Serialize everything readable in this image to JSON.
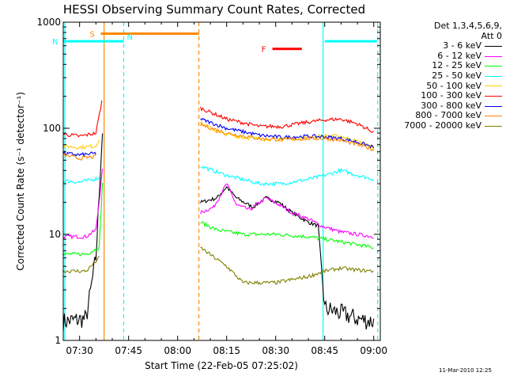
{
  "chart_data": {
    "type": "line",
    "title": "HESSI Observing Summary Count Rates, Corrected",
    "xlabel": "Start Time (22-Feb-05 07:25:02)",
    "ylabel": "Corrected Count Rate (s⁻¹ detector⁻¹)",
    "yscale": "log",
    "ylim": [
      1,
      1000
    ],
    "xlim_minutes": [
      445,
      542
    ],
    "x_ticks": [
      "07:30",
      "07:45",
      "08:00",
      "08:15",
      "08:30",
      "08:45",
      "09:00"
    ],
    "x_tick_minutes": [
      450,
      465,
      480,
      495,
      510,
      525,
      540
    ],
    "y_ticks": [
      "1",
      "10",
      "100",
      "1000"
    ],
    "y_tick_values": [
      1,
      10,
      100,
      1000
    ],
    "legend_header": [
      "Det 1,3,4,5,6,9,",
      "Att 0"
    ],
    "series": [
      {
        "name": "3 - 6 keV",
        "color": "#000000",
        "points": [
          [
            445,
            1.5
          ],
          [
            452,
            1.6
          ],
          [
            455,
            6.0
          ],
          [
            457,
            90
          ],
          [
            457.5,
            null
          ],
          [
            487,
            20
          ],
          [
            492,
            22
          ],
          [
            495,
            28
          ],
          [
            498,
            22
          ],
          [
            503,
            18
          ],
          [
            507,
            22
          ],
          [
            511,
            20
          ],
          [
            515,
            16
          ],
          [
            520,
            13
          ],
          [
            523,
            12
          ],
          [
            525,
            2.0
          ],
          [
            530,
            1.8
          ],
          [
            535,
            1.6
          ],
          [
            540,
            1.5
          ]
        ]
      },
      {
        "name": "6 - 12 keV",
        "color": "#ff00ff",
        "points": [
          [
            445,
            9.5
          ],
          [
            452,
            9.5
          ],
          [
            455,
            11
          ],
          [
            457,
            40
          ],
          [
            457.5,
            null
          ],
          [
            487,
            16
          ],
          [
            491,
            18
          ],
          [
            495,
            30
          ],
          [
            498,
            19
          ],
          [
            502,
            17
          ],
          [
            507,
            22
          ],
          [
            511,
            19
          ],
          [
            515,
            16
          ],
          [
            520,
            14
          ],
          [
            524,
            12
          ],
          [
            530,
            10.5
          ],
          [
            535,
            10
          ],
          [
            540,
            9.5
          ]
        ]
      },
      {
        "name": "12 - 25 keV",
        "color": "#00ff00",
        "points": [
          [
            445,
            6.5
          ],
          [
            452,
            6.5
          ],
          [
            456,
            7.5
          ],
          [
            457,
            30
          ],
          [
            457.5,
            null
          ],
          [
            487,
            13
          ],
          [
            492,
            11
          ],
          [
            500,
            10
          ],
          [
            510,
            10
          ],
          [
            520,
            9.5
          ],
          [
            530,
            8.5
          ],
          [
            540,
            7.5
          ]
        ]
      },
      {
        "name": "25 - 50 keV",
        "color": "#00ffff",
        "points": [
          [
            445,
            32
          ],
          [
            450,
            31
          ],
          [
            456,
            34
          ],
          [
            457.5,
            null
          ],
          [
            487,
            44
          ],
          [
            495,
            36
          ],
          [
            505,
            30
          ],
          [
            512,
            30
          ],
          [
            520,
            33
          ],
          [
            525,
            36
          ],
          [
            530,
            40
          ],
          [
            535,
            36
          ],
          [
            540,
            33
          ]
        ]
      },
      {
        "name": "50 - 100 keV",
        "color": "#ffcc00",
        "points": [
          [
            445,
            68
          ],
          [
            450,
            66
          ],
          [
            455,
            68
          ],
          [
            456,
            80
          ],
          [
            457.5,
            null
          ],
          [
            487,
            112
          ],
          [
            493,
            90
          ],
          [
            500,
            82
          ],
          [
            510,
            78
          ],
          [
            520,
            82
          ],
          [
            525,
            85
          ],
          [
            530,
            84
          ],
          [
            535,
            75
          ],
          [
            540,
            65
          ]
        ]
      },
      {
        "name": "100 - 300 keV",
        "color": "#ff0000",
        "points": [
          [
            445,
            88
          ],
          [
            450,
            84
          ],
          [
            455,
            90
          ],
          [
            456.8,
            180
          ],
          [
            457.5,
            null
          ],
          [
            487,
            155
          ],
          [
            495,
            122
          ],
          [
            505,
            104
          ],
          [
            512,
            104
          ],
          [
            518,
            112
          ],
          [
            525,
            120
          ],
          [
            530,
            122
          ],
          [
            535,
            110
          ],
          [
            540,
            92
          ]
        ]
      },
      {
        "name": "300 - 800 keV",
        "color": "#0000ff",
        "points": [
          [
            445,
            58
          ],
          [
            450,
            56
          ],
          [
            455,
            58
          ],
          [
            457.5,
            null
          ],
          [
            487,
            122
          ],
          [
            495,
            100
          ],
          [
            505,
            86
          ],
          [
            512,
            82
          ],
          [
            520,
            84
          ],
          [
            525,
            83
          ],
          [
            530,
            80
          ],
          [
            535,
            74
          ],
          [
            540,
            66
          ]
        ]
      },
      {
        "name": "800 - 7000 keV",
        "color": "#ff8800",
        "points": [
          [
            445,
            56
          ],
          [
            450,
            52
          ],
          [
            455,
            54
          ],
          [
            457.5,
            null
          ],
          [
            487,
            108
          ],
          [
            495,
            90
          ],
          [
            505,
            80
          ],
          [
            512,
            78
          ],
          [
            520,
            80
          ],
          [
            525,
            80
          ],
          [
            530,
            77
          ],
          [
            535,
            70
          ],
          [
            540,
            63
          ]
        ]
      },
      {
        "name": "7000 - 20000 keV",
        "color": "#808000",
        "points": [
          [
            445,
            4.5
          ],
          [
            452,
            4.5
          ],
          [
            456,
            6
          ],
          [
            457.5,
            null
          ],
          [
            487,
            7.5
          ],
          [
            495,
            5.0
          ],
          [
            500,
            3.5
          ],
          [
            510,
            3.5
          ],
          [
            520,
            4.0
          ],
          [
            525,
            4.5
          ],
          [
            530,
            4.8
          ],
          [
            535,
            4.6
          ],
          [
            540,
            4.5
          ]
        ]
      }
    ],
    "annotations": {
      "s_bar": {
        "label": "S",
        "color": "#ff8800",
        "x": [
          456.5,
          486.5
        ],
        "y": 780
      },
      "n_bar_left": {
        "label": "N",
        "color": "#00ffff",
        "x": [
          445,
          463.5
        ],
        "y": 660
      },
      "n_bar_right": {
        "color": "#00ffff",
        "x": [
          525,
          541
        ],
        "y": 660
      },
      "f_bar": {
        "label": "F",
        "color": "#ff0000",
        "x": [
          509,
          518
        ],
        "y": 560
      },
      "lines": [
        {
          "minute": 457.5,
          "color": "#ff8800",
          "style": "solid"
        },
        {
          "minute": 486.5,
          "color": "#ff8800",
          "style": "dashed"
        },
        {
          "minute": 445.5,
          "color": "#00ffff",
          "style": "solid"
        },
        {
          "minute": 463.5,
          "color": "#00ffff",
          "style": "dashed"
        },
        {
          "minute": 524.5,
          "color": "#00ffff",
          "style": "solid"
        },
        {
          "minute": 541.2,
          "color": "#00ffff",
          "style": "dashed"
        }
      ]
    }
  },
  "footer_timestamp": "11-Mar-2010 12:25"
}
